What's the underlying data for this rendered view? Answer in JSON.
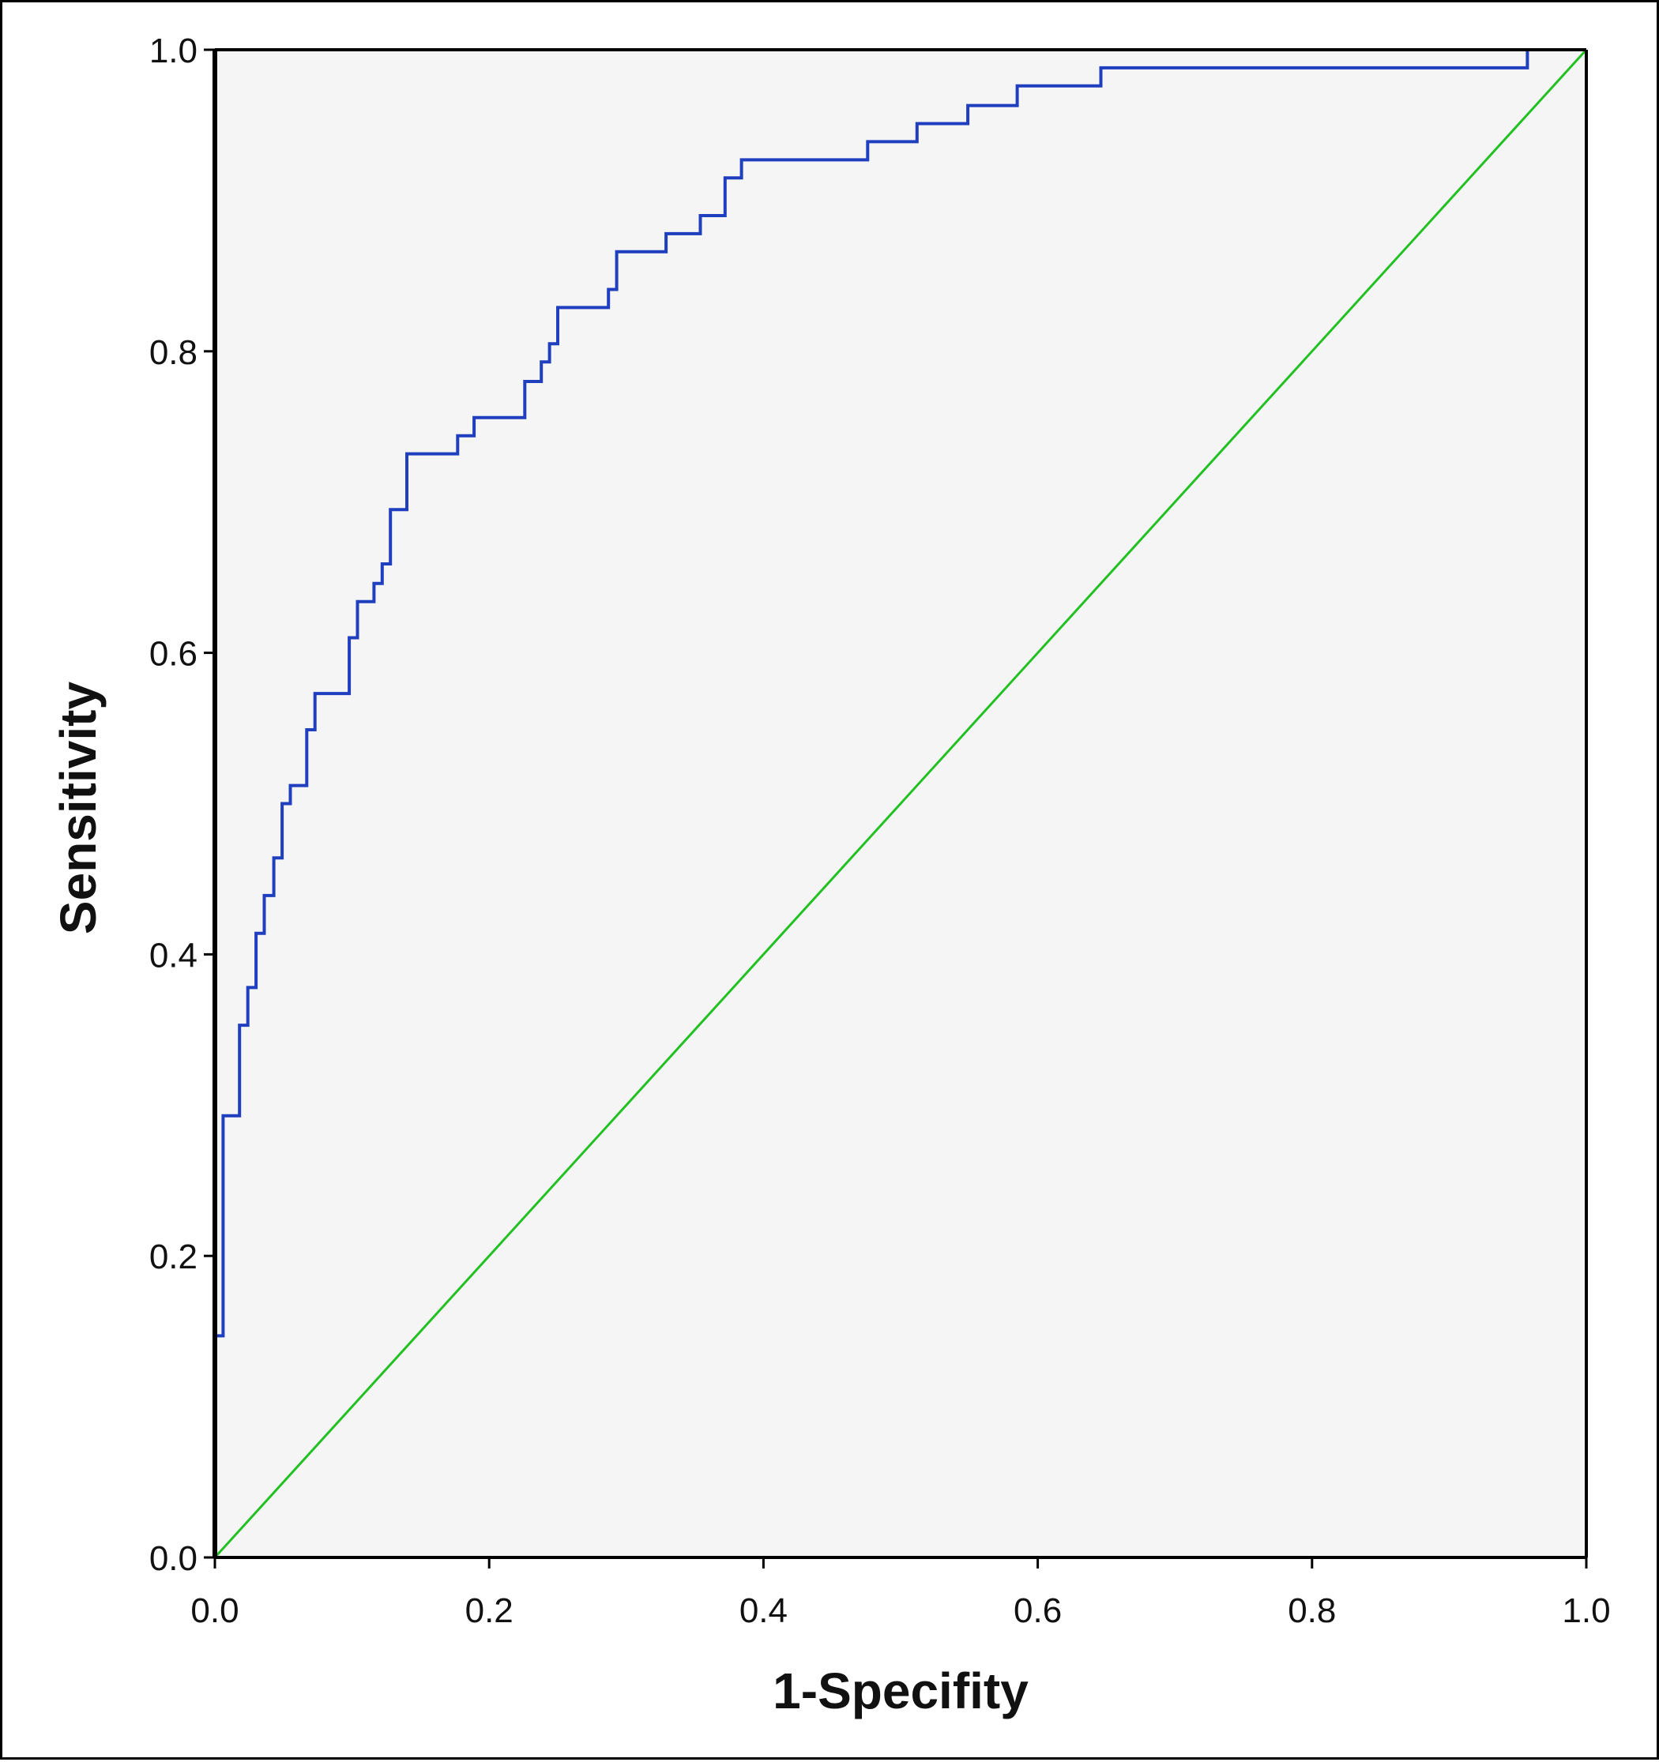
{
  "chart_data": {
    "type": "line",
    "title": "",
    "xlabel": "1-Specifity",
    "ylabel": "Sensitivity",
    "xlim": [
      0.0,
      1.0
    ],
    "ylim": [
      0.0,
      1.0
    ],
    "x_ticks": [
      "0.0",
      "0.2",
      "0.4",
      "0.6",
      "0.8",
      "1.0"
    ],
    "y_ticks": [
      "0.0",
      "0.2",
      "0.4",
      "0.6",
      "0.8",
      "1.0"
    ],
    "grid": false,
    "legend": "none",
    "plot_background": "#f5f5f5",
    "series": [
      {
        "kind": "roc-step",
        "color": "#1f3fbf",
        "points": [
          [
            0.0,
            0.0
          ],
          [
            0.0,
            0.147
          ],
          [
            0.006,
            0.147
          ],
          [
            0.006,
            0.293
          ],
          [
            0.018,
            0.293
          ],
          [
            0.018,
            0.353
          ],
          [
            0.024,
            0.353
          ],
          [
            0.024,
            0.378
          ],
          [
            0.03,
            0.378
          ],
          [
            0.03,
            0.414
          ],
          [
            0.036,
            0.414
          ],
          [
            0.036,
            0.439
          ],
          [
            0.043,
            0.439
          ],
          [
            0.043,
            0.464
          ],
          [
            0.049,
            0.464
          ],
          [
            0.049,
            0.5
          ],
          [
            0.055,
            0.5
          ],
          [
            0.055,
            0.512
          ],
          [
            0.067,
            0.512
          ],
          [
            0.067,
            0.549
          ],
          [
            0.073,
            0.549
          ],
          [
            0.073,
            0.573
          ],
          [
            0.098,
            0.573
          ],
          [
            0.098,
            0.61
          ],
          [
            0.104,
            0.61
          ],
          [
            0.104,
            0.634
          ],
          [
            0.116,
            0.634
          ],
          [
            0.116,
            0.646
          ],
          [
            0.122,
            0.646
          ],
          [
            0.122,
            0.659
          ],
          [
            0.128,
            0.659
          ],
          [
            0.128,
            0.695
          ],
          [
            0.14,
            0.695
          ],
          [
            0.14,
            0.732
          ],
          [
            0.177,
            0.732
          ],
          [
            0.177,
            0.744
          ],
          [
            0.189,
            0.744
          ],
          [
            0.189,
            0.756
          ],
          [
            0.226,
            0.756
          ],
          [
            0.226,
            0.78
          ],
          [
            0.238,
            0.78
          ],
          [
            0.238,
            0.793
          ],
          [
            0.244,
            0.793
          ],
          [
            0.244,
            0.805
          ],
          [
            0.25,
            0.805
          ],
          [
            0.25,
            0.829
          ],
          [
            0.287,
            0.829
          ],
          [
            0.287,
            0.841
          ],
          [
            0.293,
            0.841
          ],
          [
            0.293,
            0.866
          ],
          [
            0.329,
            0.866
          ],
          [
            0.329,
            0.878
          ],
          [
            0.354,
            0.878
          ],
          [
            0.354,
            0.89
          ],
          [
            0.372,
            0.89
          ],
          [
            0.372,
            0.915
          ],
          [
            0.384,
            0.915
          ],
          [
            0.384,
            0.927
          ],
          [
            0.476,
            0.927
          ],
          [
            0.476,
            0.939
          ],
          [
            0.512,
            0.939
          ],
          [
            0.512,
            0.951
          ],
          [
            0.549,
            0.951
          ],
          [
            0.549,
            0.963
          ],
          [
            0.585,
            0.963
          ],
          [
            0.585,
            0.976
          ],
          [
            0.646,
            0.976
          ],
          [
            0.646,
            0.988
          ],
          [
            0.957,
            0.988
          ],
          [
            0.957,
            1.0
          ],
          [
            1.0,
            1.0
          ]
        ]
      },
      {
        "kind": "reference-line",
        "color": "#22c022",
        "points": [
          [
            0.0,
            0.0
          ],
          [
            1.0,
            1.0
          ]
        ]
      }
    ]
  }
}
